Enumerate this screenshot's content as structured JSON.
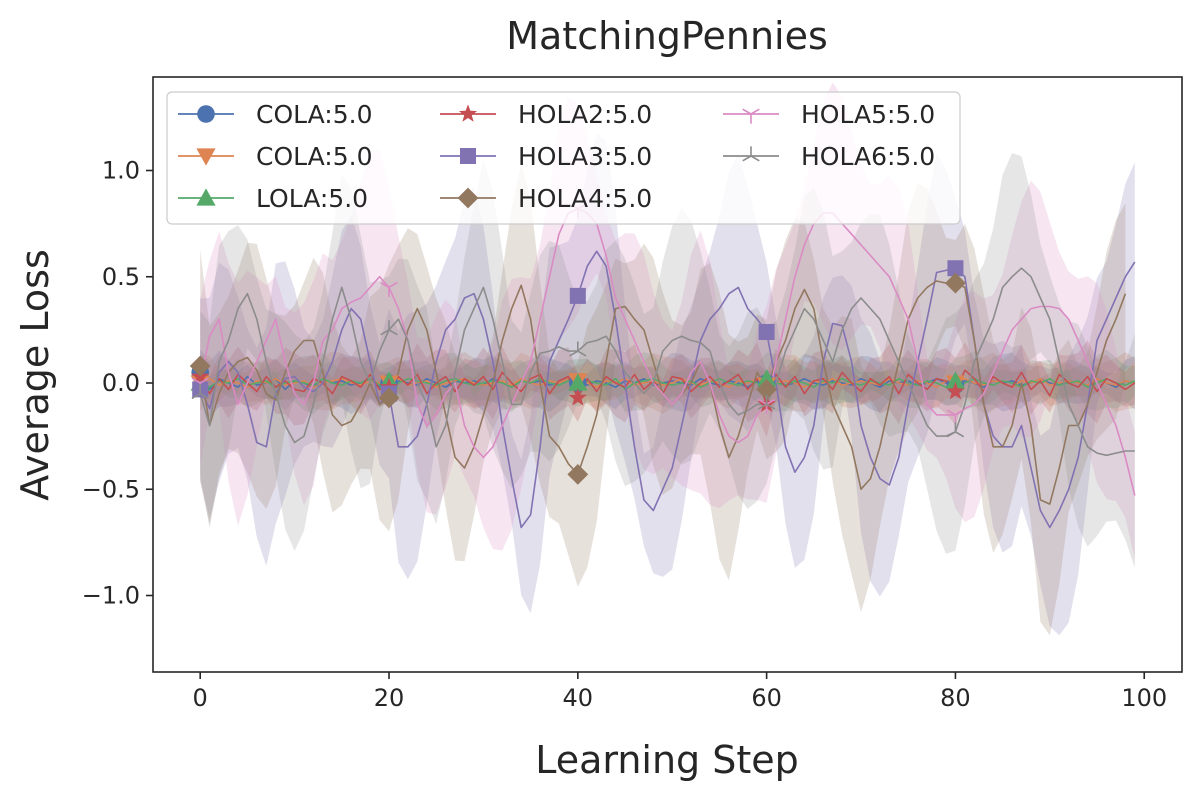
{
  "chart_data": {
    "type": "line",
    "title": "MatchingPennies",
    "xlabel": "Learning Step",
    "ylabel": "Average Loss",
    "xlim": [
      -5,
      104
    ],
    "ylim": [
      -1.36,
      1.44
    ],
    "xticks": [
      0,
      20,
      40,
      60,
      80,
      100
    ],
    "xtick_labels": [
      "0",
      "20",
      "40",
      "60",
      "80",
      "100"
    ],
    "yticks": [
      -1.0,
      -0.5,
      0.0,
      0.5,
      1.0
    ],
    "ytick_labels": [
      "−1.0",
      "−0.5",
      "0.0",
      "0.5",
      "1.0"
    ],
    "legend_position": "upper-left",
    "legend_columns": 3,
    "marker_every": 20,
    "series": [
      {
        "name": "COLA:5.0",
        "color": "#4c72b0",
        "marker": "circle",
        "band": 0.12,
        "values": [
          0.05,
          -0.03,
          0.02,
          0.0,
          -0.02,
          0.03,
          -0.01,
          0.0,
          0.02,
          -0.03,
          0.01,
          0.0,
          -0.02,
          0.02,
          0.0,
          0.01,
          -0.01,
          0.0,
          0.02,
          -0.02,
          0.0,
          0.01,
          0.0,
          -0.01,
          0.02,
          0.0,
          -0.02,
          0.01,
          0.0,
          0.01,
          -0.01,
          0.02,
          0.0,
          -0.02,
          0.01,
          0.0,
          0.01,
          -0.01,
          0.0,
          0.02,
          0.0,
          -0.01,
          0.01,
          0.0,
          -0.02,
          0.01,
          0.0,
          0.02,
          -0.01,
          0.0,
          0.01,
          0.0,
          -0.01,
          0.02,
          0.0,
          -0.01,
          0.01,
          0.0,
          -0.02,
          0.01,
          0.0,
          0.01,
          -0.01,
          0.0,
          0.02,
          0.0,
          -0.01,
          0.01,
          0.0,
          -0.01,
          0.02,
          0.0,
          -0.02,
          0.01,
          0.0,
          0.01,
          -0.01,
          0.0,
          0.02,
          0.0,
          -0.01,
          0.01,
          0.0,
          -0.02,
          0.01,
          0.0,
          0.01,
          -0.01,
          0.0,
          0.02,
          0.0,
          -0.01,
          0.01,
          0.0,
          -0.01,
          0.02,
          0.0,
          -0.02,
          0.01,
          0.0
        ]
      },
      {
        "name": "COLA:5.0",
        "color": "#dd8452",
        "marker": "triangle-down",
        "band": 0.12,
        "values": [
          0.0,
          0.02,
          -0.01,
          0.01,
          0.0,
          -0.02,
          0.01,
          0.0,
          0.02,
          -0.01,
          0.0,
          0.01,
          -0.02,
          0.0,
          0.01,
          0.02,
          0.0,
          -0.01,
          0.01,
          0.0,
          0.0,
          0.02,
          -0.01,
          0.0,
          0.01,
          -0.02,
          0.0,
          0.01,
          0.02,
          0.0,
          -0.01,
          0.0,
          0.01,
          -0.01,
          0.02,
          0.0,
          -0.01,
          0.01,
          0.0,
          0.02,
          0.01,
          0.0,
          -0.02,
          0.01,
          0.0,
          0.02,
          -0.01,
          0.0,
          0.01,
          -0.01,
          0.0,
          0.02,
          0.0,
          -0.01,
          0.01,
          0.0,
          -0.02,
          0.01,
          0.0,
          0.02,
          -0.01,
          0.0,
          0.01,
          0.0,
          -0.02,
          0.01,
          0.0,
          0.02,
          -0.01,
          0.0,
          0.01,
          0.0,
          -0.01,
          0.02,
          0.0,
          -0.01,
          0.01,
          0.0,
          -0.02,
          0.01,
          0.0,
          0.02,
          0.0,
          -0.01,
          0.01,
          0.0,
          -0.02,
          0.01,
          0.0,
          0.02,
          -0.01,
          0.0,
          0.01,
          0.0,
          -0.01,
          0.02,
          0.0,
          -0.01,
          0.01,
          0.0
        ]
      },
      {
        "name": "LOLA:5.0",
        "color": "#55a868",
        "marker": "triangle-up",
        "band": 0.12,
        "values": [
          0.0,
          -0.02,
          0.01,
          0.0,
          0.02,
          -0.01,
          0.0,
          0.01,
          -0.02,
          0.0,
          0.01,
          0.0,
          -0.01,
          0.02,
          0.0,
          -0.01,
          0.01,
          0.0,
          0.02,
          -0.01,
          0.01,
          0.0,
          0.02,
          0.01,
          0.0,
          -0.01,
          0.01,
          0.02,
          0.0,
          -0.01,
          0.0,
          0.01,
          0.0,
          -0.02,
          0.01,
          0.0,
          0.02,
          0.0,
          -0.01,
          0.01,
          0.0,
          0.01,
          0.0,
          -0.01,
          0.02,
          -0.03,
          0.0,
          0.01,
          0.02,
          0.0,
          -0.01,
          0.0,
          0.01,
          -0.02,
          0.0,
          0.02,
          0.0,
          -0.01,
          0.01,
          0.0,
          0.02,
          0.0,
          -0.01,
          0.01,
          0.0,
          -0.02,
          0.01,
          0.0,
          0.02,
          0.0,
          -0.01,
          0.01,
          0.0,
          -0.01,
          0.02,
          0.0,
          -0.01,
          0.01,
          0.0,
          -0.02,
          0.01,
          0.0,
          0.02,
          0.0,
          -0.01,
          0.01,
          0.0,
          -0.02,
          0.01,
          0.0,
          0.02,
          -0.01,
          0.0,
          0.01,
          -0.02,
          0.0,
          0.02,
          0.0,
          -0.01,
          0.01
        ]
      },
      {
        "name": "HOLA2:5.0",
        "color": "#c44e52",
        "marker": "star",
        "band": 0.15,
        "values": [
          0.03,
          -0.05,
          0.02,
          -0.03,
          0.04,
          0.0,
          -0.04,
          0.03,
          -0.02,
          0.01,
          -0.03,
          -0.04,
          0.02,
          0.0,
          -0.05,
          0.03,
          0.01,
          -0.02,
          0.04,
          -0.03,
          -0.02,
          0.03,
          -0.01,
          0.04,
          -0.05,
          0.0,
          0.03,
          -0.04,
          0.02,
          -0.01,
          0.03,
          -0.03,
          0.05,
          0.0,
          -0.04,
          0.02,
          0.04,
          -0.05,
          0.01,
          0.03,
          -0.07,
          0.02,
          -0.04,
          0.03,
          0.0,
          -0.02,
          0.04,
          -0.03,
          0.01,
          -0.05,
          0.03,
          0.02,
          -0.04,
          0.0,
          0.03,
          -0.02,
          0.01,
          0.04,
          -0.03,
          0.02,
          -0.1,
          0.04,
          -0.02,
          0.03,
          -0.05,
          0.01,
          0.02,
          -0.03,
          0.05,
          0.0,
          -0.04,
          0.02,
          -0.01,
          0.03,
          -0.05,
          0.04,
          0.0,
          -0.03,
          0.02,
          0.01,
          -0.04,
          0.06,
          0.02,
          -0.04,
          0.03,
          0.0,
          -0.02,
          0.05,
          -0.03,
          0.01,
          -0.06,
          0.04,
          0.0,
          -0.02,
          0.03,
          -0.04,
          0.02,
          0.0,
          -0.03,
          0.0
        ]
      },
      {
        "name": "HOLA3:5.0",
        "color": "#8172b2",
        "marker": "square",
        "band": 0.55,
        "values": [
          -0.03,
          -0.12,
          0.05,
          0.1,
          0.05,
          -0.1,
          -0.28,
          -0.3,
          -0.05,
          0.02,
          0.03,
          -0.02,
          -0.04,
          0.0,
          0.1,
          0.25,
          0.35,
          0.3,
          0.1,
          -0.1,
          -0.05,
          -0.3,
          -0.3,
          -0.25,
          -0.1,
          0.1,
          0.25,
          0.3,
          0.4,
          0.42,
          0.3,
          0.1,
          -0.2,
          -0.45,
          -0.68,
          -0.62,
          -0.3,
          0.1,
          0.2,
          0.3,
          0.41,
          0.55,
          0.62,
          0.55,
          0.3,
          0.0,
          -0.3,
          -0.55,
          -0.6,
          -0.5,
          -0.4,
          -0.2,
          0.0,
          0.2,
          0.3,
          0.35,
          0.42,
          0.45,
          0.35,
          0.3,
          0.24,
          0.0,
          -0.3,
          -0.42,
          -0.35,
          -0.2,
          0.1,
          0.28,
          0.27,
          0.1,
          -0.2,
          -0.35,
          -0.45,
          -0.48,
          -0.35,
          -0.1,
          0.1,
          0.3,
          0.52,
          0.53,
          0.54,
          0.5,
          0.2,
          -0.1,
          -0.25,
          -0.3,
          -0.3,
          -0.2,
          -0.4,
          -0.6,
          -0.68,
          -0.6,
          -0.5,
          -0.35,
          -0.1,
          0.2,
          0.3,
          0.4,
          0.5,
          0.57
        ]
      },
      {
        "name": "HOLA4:5.0",
        "color": "#937860",
        "marker": "diamond",
        "band": 0.55,
        "values": [
          0.08,
          -0.2,
          -0.05,
          0.05,
          0.1,
          0.12,
          0.06,
          -0.05,
          -0.08,
          0.05,
          0.15,
          0.2,
          0.2,
          0.05,
          -0.15,
          -0.2,
          -0.18,
          -0.1,
          0.0,
          -0.1,
          -0.07,
          0.05,
          0.25,
          0.35,
          0.25,
          0.05,
          -0.15,
          -0.35,
          -0.4,
          -0.3,
          -0.15,
          0.0,
          0.2,
          0.35,
          0.46,
          0.3,
          0.0,
          -0.25,
          -0.3,
          -0.38,
          -0.43,
          -0.3,
          -0.15,
          0.1,
          0.35,
          0.36,
          0.3,
          0.25,
          0.1,
          -0.05,
          -0.1,
          -0.05,
          0.0,
          0.1,
          0.0,
          -0.2,
          -0.35,
          -0.25,
          -0.1,
          0.05,
          -0.03,
          0.1,
          0.2,
          0.35,
          0.44,
          0.35,
          0.1,
          -0.1,
          -0.2,
          -0.3,
          -0.5,
          -0.45,
          -0.3,
          -0.1,
          0.1,
          0.3,
          0.4,
          0.45,
          0.48,
          0.47,
          0.47,
          0.45,
          0.2,
          -0.1,
          -0.3,
          -0.3,
          -0.2,
          0.0,
          -0.2,
          -0.55,
          -0.57,
          -0.4,
          -0.2,
          -0.2,
          -0.1,
          0.05,
          0.2,
          0.3,
          0.42
        ]
      },
      {
        "name": "HOLA5:5.0",
        "color": "#da8bc3",
        "marker": "tri-down",
        "band": 0.55,
        "values": [
          0.0,
          0.22,
          0.3,
          0.05,
          -0.1,
          0.0,
          0.1,
          0.2,
          0.3,
          0.1,
          -0.05,
          -0.1,
          0.0,
          0.2,
          0.25,
          0.35,
          0.38,
          0.4,
          0.45,
          0.5,
          0.45,
          0.35,
          0.2,
          -0.1,
          -0.2,
          -0.15,
          -0.05,
          0.0,
          -0.2,
          -0.3,
          -0.35,
          -0.3,
          -0.2,
          -0.1,
          0.0,
          0.1,
          0.3,
          0.5,
          0.7,
          0.8,
          0.82,
          0.8,
          0.75,
          0.6,
          0.4,
          0.3,
          0.2,
          0.1,
          0.0,
          -0.05,
          -0.1,
          -0.05,
          0.05,
          0.1,
          0.0,
          -0.15,
          -0.25,
          -0.28,
          -0.25,
          -0.15,
          -0.1,
          0.1,
          0.3,
          0.5,
          0.65,
          0.75,
          0.8,
          0.8,
          0.75,
          0.7,
          0.65,
          0.6,
          0.55,
          0.5,
          0.4,
          0.3,
          0.1,
          -0.1,
          -0.15,
          -0.15,
          -0.15,
          -0.12,
          -0.1,
          -0.05,
          0.05,
          0.15,
          0.25,
          0.3,
          0.35,
          0.36,
          0.36,
          0.35,
          0.3,
          0.2,
          0.1,
          0.0,
          -0.1,
          -0.2,
          -0.35,
          -0.53
        ]
      },
      {
        "name": "HOLA6:5.0",
        "color": "#8c8c8c",
        "marker": "tri-up",
        "band": 0.55,
        "values": [
          -0.05,
          -0.2,
          0.1,
          0.2,
          0.35,
          0.42,
          0.3,
          0.1,
          -0.05,
          -0.2,
          -0.28,
          -0.25,
          -0.1,
          0.1,
          0.3,
          0.45,
          0.3,
          0.1,
          0.0,
          0.15,
          0.25,
          0.3,
          0.2,
          0.0,
          -0.1,
          -0.3,
          -0.2,
          0.05,
          0.25,
          0.35,
          0.45,
          0.3,
          0.1,
          -0.1,
          -0.1,
          0.05,
          0.14,
          0.15,
          0.17,
          0.15,
          0.15,
          0.19,
          0.2,
          0.22,
          0.15,
          0.05,
          0.0,
          -0.05,
          0.0,
          0.15,
          0.2,
          0.22,
          0.2,
          0.19,
          0.15,
          0.0,
          -0.1,
          -0.15,
          -0.13,
          -0.1,
          -0.1,
          0.0,
          0.15,
          0.25,
          0.35,
          0.3,
          0.2,
          0.1,
          0.25,
          0.35,
          0.4,
          0.35,
          0.3,
          0.2,
          0.1,
          0.0,
          -0.1,
          -0.2,
          -0.25,
          -0.25,
          -0.23,
          -0.1,
          0.1,
          0.2,
          0.3,
          0.45,
          0.5,
          0.54,
          0.5,
          0.4,
          0.3,
          0.1,
          -0.1,
          -0.2,
          -0.3,
          -0.33,
          -0.34,
          -0.33,
          -0.32,
          -0.32
        ]
      }
    ]
  }
}
